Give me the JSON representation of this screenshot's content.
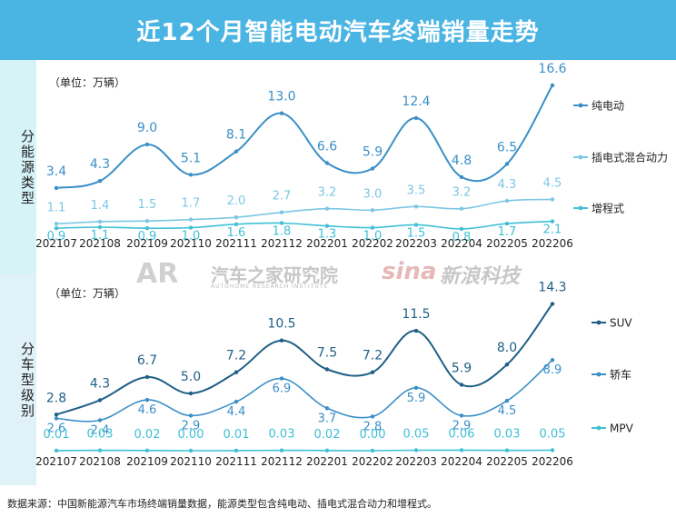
{
  "title": "近12个月智能电动汽车终端销量走势",
  "footer": "数据来源：中国新能源汽车市场终端销量数据，能源类型包含纯电动、插电式混合动力和增程式。",
  "watermarks": {
    "autohome_logo": "AR",
    "autohome_cn": "汽车之家研究院",
    "autohome_en": "AUTOHOME RESEARCH INSTITUTE",
    "sina_logo": "sina",
    "sina_cn": "新浪科技"
  },
  "colors": {
    "title_bg": "#4ab4e3",
    "dark": "#1f5f86",
    "mid": "#3a8fc7",
    "light": "#3fc0d6"
  },
  "chart_data": [
    {
      "type": "line",
      "side_label": "分能源类型",
      "unit_label": "（单位：万辆）",
      "categories": [
        "202107",
        "202108",
        "202109",
        "202110",
        "202111",
        "202112",
        "202201",
        "202202",
        "202203",
        "202204",
        "202205",
        "202206"
      ],
      "series": [
        {
          "name": "纯电动",
          "values": [
            3.4,
            4.3,
            9.0,
            5.1,
            8.1,
            13.0,
            6.6,
            5.9,
            12.4,
            4.8,
            6.5,
            16.6
          ],
          "labels": [
            "3.4",
            "4.3",
            "9.0",
            "5.1",
            "8.1",
            "13.0",
            "6.6",
            "5.9",
            "12.4",
            "4.8",
            "6.5",
            "16.6"
          ],
          "color": "#3a8fc7"
        },
        {
          "name": "插电式混合动力",
          "values": [
            1.1,
            1.4,
            1.5,
            1.7,
            2.0,
            2.7,
            3.2,
            3.0,
            3.5,
            3.2,
            4.3,
            4.5
          ],
          "labels": [
            "1.1",
            "1.4",
            "1.5",
            "1.7",
            "2.0",
            "2.7",
            "3.2",
            "3.0",
            "3.5",
            "3.2",
            "4.3",
            "4.5"
          ],
          "color": "#7cc7e4"
        },
        {
          "name": "增程式",
          "values": [
            0.9,
            1.1,
            0.9,
            1.0,
            1.6,
            1.8,
            1.3,
            1.0,
            1.5,
            0.8,
            1.7,
            2.1
          ],
          "labels": [
            "0.9",
            "1.1",
            "0.9",
            "1.0",
            "1.6",
            "1.8",
            "1.3",
            "1.0",
            "1.5",
            "0.8",
            "1.7",
            "2.1"
          ],
          "color": "#3fc0d6"
        }
      ]
    },
    {
      "type": "line",
      "side_label": "分车型级别",
      "unit_label": "（单位：万辆）",
      "categories": [
        "202107",
        "202108",
        "202109",
        "202110",
        "202111",
        "202112",
        "202201",
        "202202",
        "202203",
        "202204",
        "202205",
        "202206"
      ],
      "series": [
        {
          "name": "SUV",
          "values": [
            2.8,
            4.3,
            6.7,
            5.0,
            7.2,
            10.5,
            7.5,
            7.2,
            11.5,
            5.9,
            8.0,
            14.3
          ],
          "labels": [
            "2.8",
            "4.3",
            "6.7",
            "5.0",
            "7.2",
            "10.5",
            "7.5",
            "7.2",
            "11.5",
            "5.9",
            "8.0",
            "14.3"
          ],
          "color": "#1f5f86"
        },
        {
          "name": "轿车",
          "values": [
            2.6,
            2.4,
            4.6,
            2.9,
            4.4,
            6.9,
            3.7,
            2.8,
            5.9,
            2.9,
            4.5,
            8.9
          ],
          "labels": [
            "2.6",
            "2.4",
            "4.6",
            "2.9",
            "4.4",
            "6.9",
            "3.7",
            "2.8",
            "5.9",
            "2.9",
            "4.5",
            "8.9"
          ],
          "color": "#3a8fc7"
        },
        {
          "name": "MPV",
          "values": [
            0.01,
            0.03,
            0.02,
            0.0,
            0.01,
            0.03,
            0.02,
            0.0,
            0.05,
            0.06,
            0.03,
            0.05
          ],
          "labels": [
            "0.01",
            "0.03",
            "0.02",
            "0.00",
            "0.01",
            "0.03",
            "0.02",
            "0.00",
            "0.05",
            "0.06",
            "0.03",
            "0.05"
          ],
          "color": "#3fc0d6"
        }
      ]
    }
  ]
}
